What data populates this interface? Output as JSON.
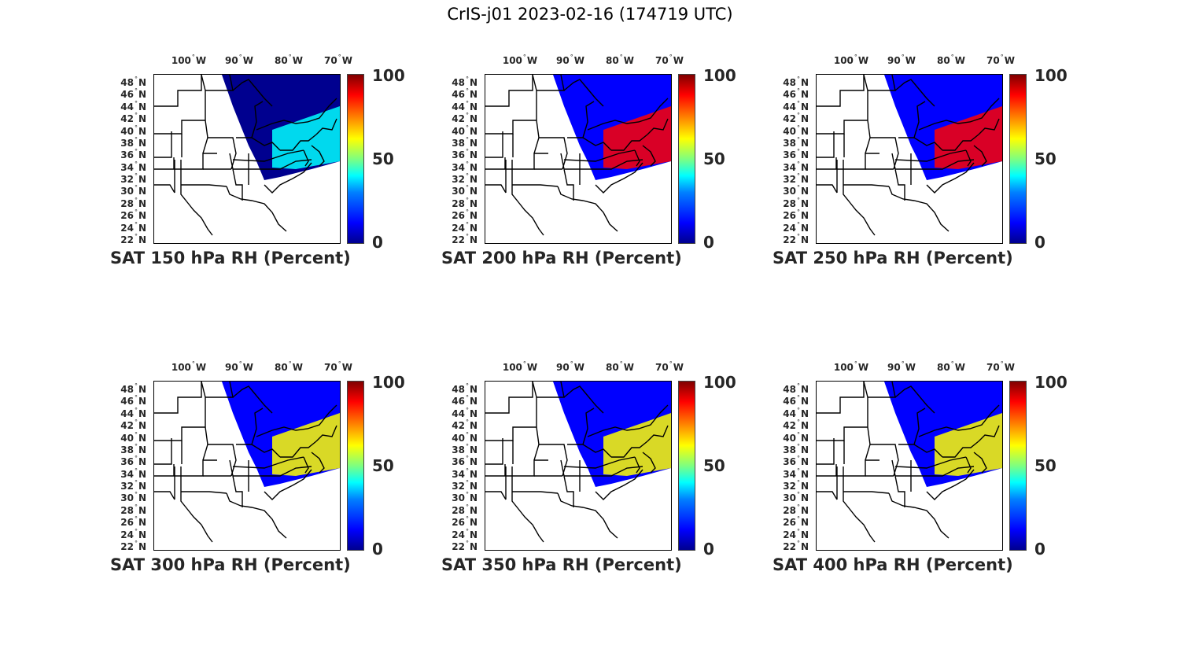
{
  "title": "CrIS-j01 2023-02-16 (174719 UTC)",
  "lon_ticks": [
    {
      "deg": "100",
      "hem": "W"
    },
    {
      "deg": "90",
      "hem": "W"
    },
    {
      "deg": "80",
      "hem": "W"
    },
    {
      "deg": "70",
      "hem": "W"
    }
  ],
  "lat_ticks": [
    {
      "deg": "48",
      "hem": "N"
    },
    {
      "deg": "46",
      "hem": "N"
    },
    {
      "deg": "44",
      "hem": "N"
    },
    {
      "deg": "42",
      "hem": "N"
    },
    {
      "deg": "40",
      "hem": "N"
    },
    {
      "deg": "38",
      "hem": "N"
    },
    {
      "deg": "36",
      "hem": "N"
    },
    {
      "deg": "34",
      "hem": "N"
    },
    {
      "deg": "32",
      "hem": "N"
    },
    {
      "deg": "30",
      "hem": "N"
    },
    {
      "deg": "28",
      "hem": "N"
    },
    {
      "deg": "26",
      "hem": "N"
    },
    {
      "deg": "24",
      "hem": "N"
    },
    {
      "deg": "22",
      "hem": "N"
    }
  ],
  "colorbar": {
    "ticks": [
      "100",
      "50",
      "0"
    ],
    "range": [
      0,
      100
    ],
    "colormap": "jet",
    "colors": [
      "#00008f",
      "#0000ff",
      "#00ffff",
      "#ffff00",
      "#ff0000",
      "#800000"
    ]
  },
  "panels": [
    {
      "title": "SAT 150 hPa RH (Percent)",
      "level_hpa": 150
    },
    {
      "title": "SAT 200 hPa RH (Percent)",
      "level_hpa": 200
    },
    {
      "title": "SAT 250 hPa RH (Percent)",
      "level_hpa": 250
    },
    {
      "title": "SAT 300 hPa RH (Percent)",
      "level_hpa": 300
    },
    {
      "title": "SAT 350 hPa RH (Percent)",
      "level_hpa": 350
    },
    {
      "title": "SAT 400 hPa RH (Percent)",
      "level_hpa": 400
    }
  ],
  "map_extent": {
    "lon": [
      -106,
      -68
    ],
    "lat": [
      22,
      50
    ]
  }
}
